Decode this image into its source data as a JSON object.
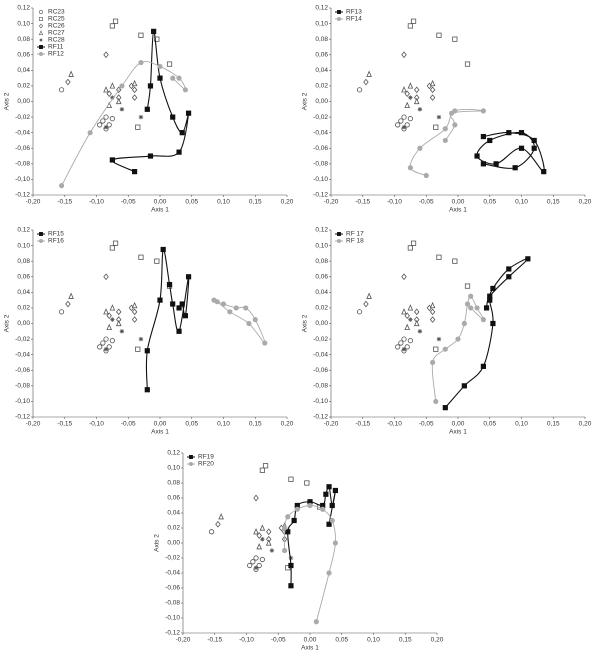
{
  "chart_data": [
    {
      "type": "scatter",
      "xlabel": "Axis 1",
      "ylabel": "Axis 2",
      "legend": "upper left",
      "xlim": [
        -0.2,
        0.2
      ],
      "ylim": [
        -0.12,
        0.12
      ],
      "xticks": [
        {
          "value": -0.2,
          "label": "-0,20"
        },
        {
          "value": -0.15,
          "label": "-0,15"
        },
        {
          "value": -0.1,
          "label": "-0,10"
        },
        {
          "value": -0.05,
          "label": "-0,05"
        },
        {
          "value": 0,
          "label": "0,00"
        },
        {
          "value": 0.05,
          "label": "0,05"
        },
        {
          "value": 0.1,
          "label": "0,10"
        },
        {
          "value": 0.15,
          "label": "0,15"
        },
        {
          "value": 0.2,
          "label": "0,20"
        }
      ],
      "yticks": [
        {
          "value": -0.12,
          "label": "-0,12"
        },
        {
          "value": -0.1,
          "label": "-0,10"
        },
        {
          "value": -0.08,
          "label": "-0,08"
        },
        {
          "value": -0.06,
          "label": "-0,06"
        },
        {
          "value": -0.04,
          "label": "-0,04"
        },
        {
          "value": -0.02,
          "label": "-0,02"
        },
        {
          "value": 0,
          "label": "0,00"
        },
        {
          "value": 0.02,
          "label": "0,02"
        },
        {
          "value": 0.04,
          "label": "0,04"
        },
        {
          "value": 0.06,
          "label": "0,06"
        },
        {
          "value": 0.08,
          "label": "0,08"
        },
        {
          "value": 0.1,
          "label": "0,10"
        },
        {
          "value": 0.12,
          "label": "0,12"
        }
      ],
      "series": [
        {
          "name": "RC23",
          "marker": "circle",
          "color": "#555555",
          "line": false,
          "x": [
            -0.155,
            -0.09,
            -0.085,
            -0.095,
            -0.08,
            -0.085,
            -0.075
          ],
          "values": [
            0.015,
            -0.025,
            -0.02,
            -0.03,
            -0.03,
            -0.035,
            -0.022
          ]
        },
        {
          "name": "RC25",
          "marker": "square",
          "color": "#555555",
          "line": false,
          "x": [
            -0.07,
            -0.075,
            -0.03,
            -0.005,
            -0.035,
            0.015
          ],
          "values": [
            0.103,
            0.097,
            0.085,
            0.08,
            -0.033,
            0.048
          ]
        },
        {
          "name": "RC26",
          "marker": "diamond",
          "color": "#555555",
          "line": false,
          "x": [
            -0.085,
            -0.145,
            -0.045,
            -0.04,
            -0.065,
            -0.08,
            -0.065,
            -0.04
          ],
          "values": [
            0.06,
            0.025,
            0.02,
            0.015,
            0.015,
            0.01,
            0.005,
            0.005
          ]
        },
        {
          "name": "RC27",
          "marker": "triangle",
          "color": "#555555",
          "line": false,
          "x": [
            -0.14,
            -0.075,
            -0.085,
            -0.065,
            -0.08,
            -0.04
          ],
          "values": [
            0.035,
            0.02,
            0.015,
            0.0,
            -0.005,
            0.023
          ]
        },
        {
          "name": "RC28",
          "marker": "star",
          "color": "#555555",
          "line": false,
          "x": [
            -0.06,
            -0.085,
            -0.03,
            -0.075
          ],
          "values": [
            -0.01,
            -0.033,
            -0.02,
            0.005
          ]
        },
        {
          "name": "RF11",
          "marker": "square",
          "color": "#111111",
          "line": true,
          "x": [
            -0.04,
            -0.075,
            -0.015,
            0.03,
            0.045,
            0.035,
            0.02,
            0.0,
            -0.01,
            -0.015,
            -0.02
          ],
          "values": [
            -0.09,
            -0.075,
            -0.07,
            -0.065,
            -0.015,
            -0.04,
            -0.02,
            0.03,
            0.09,
            0.02,
            -0.01
          ]
        },
        {
          "name": "RF12",
          "marker": "circle",
          "color": "#aaaaaa",
          "line": true,
          "x": [
            -0.155,
            -0.11,
            -0.06,
            -0.03,
            0.0,
            0.03,
            0.04,
            0.02
          ],
          "values": [
            -0.108,
            -0.04,
            0.02,
            0.05,
            0.045,
            0.03,
            0.015,
            0.03
          ]
        }
      ]
    },
    {
      "type": "scatter",
      "xlabel": "Axis 1",
      "ylabel": "Axis 2",
      "legend": "upper left",
      "xlim": [
        -0.2,
        0.2
      ],
      "ylim": [
        -0.12,
        0.12
      ],
      "xticks": [
        {
          "value": -0.2,
          "label": "-0,20"
        },
        {
          "value": -0.15,
          "label": "-0,15"
        },
        {
          "value": -0.1,
          "label": "-0,10"
        },
        {
          "value": -0.05,
          "label": "-0,05"
        },
        {
          "value": 0,
          "label": "0,00"
        },
        {
          "value": 0.05,
          "label": "0,05"
        },
        {
          "value": 0.1,
          "label": "0,10"
        },
        {
          "value": 0.15,
          "label": "0,15"
        },
        {
          "value": 0.2,
          "label": "0,20"
        }
      ],
      "yticks": [
        {
          "value": -0.12,
          "label": "-0,12"
        },
        {
          "value": -0.1,
          "label": "-0,10"
        },
        {
          "value": -0.08,
          "label": "-0,08"
        },
        {
          "value": -0.06,
          "label": "-0,06"
        },
        {
          "value": -0.04,
          "label": "-0,04"
        },
        {
          "value": -0.02,
          "label": "-0,02"
        },
        {
          "value": 0,
          "label": "0,00"
        },
        {
          "value": 0.02,
          "label": "0,02"
        },
        {
          "value": 0.04,
          "label": "0,04"
        },
        {
          "value": 0.06,
          "label": "0,06"
        },
        {
          "value": 0.08,
          "label": "0,08"
        },
        {
          "value": 0.1,
          "label": "0,10"
        },
        {
          "value": 0.12,
          "label": "0,12"
        }
      ],
      "series": [
        {
          "name": "RF13",
          "marker": "square",
          "color": "#111111",
          "line": true,
          "x": [
            0.04,
            0.08,
            0.12,
            0.135,
            0.1,
            0.06,
            0.03,
            0.05,
            0.1,
            0.12,
            0.09,
            0.04
          ],
          "values": [
            -0.045,
            -0.04,
            -0.05,
            -0.09,
            -0.06,
            -0.08,
            -0.07,
            -0.05,
            -0.04,
            -0.06,
            -0.085,
            -0.08
          ]
        },
        {
          "name": "RF14",
          "marker": "circle",
          "color": "#aaaaaa",
          "line": true,
          "x": [
            -0.05,
            -0.075,
            -0.06,
            -0.02,
            -0.005,
            0.04,
            -0.01,
            -0.005,
            -0.02
          ],
          "values": [
            -0.095,
            -0.085,
            -0.06,
            -0.035,
            -0.012,
            -0.012,
            -0.015,
            -0.03,
            -0.05
          ]
        }
      ]
    },
    {
      "type": "scatter",
      "xlabel": "Axis 1",
      "ylabel": "Axis 2",
      "legend": "upper left",
      "xlim": [
        -0.2,
        0.2
      ],
      "ylim": [
        -0.12,
        0.12
      ],
      "xticks": [
        {
          "value": -0.2,
          "label": "-0,20"
        },
        {
          "value": -0.15,
          "label": "-0,15"
        },
        {
          "value": -0.1,
          "label": "-0,10"
        },
        {
          "value": -0.05,
          "label": "-0,05"
        },
        {
          "value": 0,
          "label": "0,00"
        },
        {
          "value": 0.05,
          "label": "0,05"
        },
        {
          "value": 0.1,
          "label": "0,10"
        },
        {
          "value": 0.15,
          "label": "0,15"
        },
        {
          "value": 0.2,
          "label": "0,20"
        }
      ],
      "yticks": [
        {
          "value": -0.12,
          "label": "-0,12"
        },
        {
          "value": -0.1,
          "label": "-0,10"
        },
        {
          "value": -0.08,
          "label": "-0,08"
        },
        {
          "value": -0.06,
          "label": "-0,06"
        },
        {
          "value": -0.04,
          "label": "-0,04"
        },
        {
          "value": -0.02,
          "label": "-0,02"
        },
        {
          "value": 0,
          "label": "0,00"
        },
        {
          "value": 0.02,
          "label": "0,02"
        },
        {
          "value": 0.04,
          "label": "0,04"
        },
        {
          "value": 0.06,
          "label": "0,06"
        },
        {
          "value": 0.08,
          "label": "0,08"
        },
        {
          "value": 0.1,
          "label": "0,10"
        },
        {
          "value": 0.12,
          "label": "0,12"
        }
      ],
      "series": [
        {
          "name": "RF15",
          "marker": "square",
          "color": "#111111",
          "line": true,
          "x": [
            -0.02,
            -0.02,
            0.0,
            0.005,
            0.015,
            0.02,
            0.03,
            0.045,
            0.04,
            0.035,
            0.03
          ],
          "values": [
            -0.085,
            -0.035,
            0.03,
            0.095,
            0.05,
            0.025,
            -0.01,
            0.06,
            0.01,
            0.025,
            0.02
          ]
        },
        {
          "name": "RF16",
          "marker": "circle",
          "color": "#aaaaaa",
          "line": true,
          "x": [
            0.085,
            0.1,
            0.12,
            0.135,
            0.15,
            0.165,
            0.14,
            0.11,
            0.09
          ],
          "values": [
            0.03,
            0.025,
            0.02,
            0.02,
            0.005,
            -0.025,
            0.0,
            0.015,
            0.028
          ]
        }
      ]
    },
    {
      "type": "scatter",
      "xlabel": "Axis 1",
      "ylabel": "Axis 2",
      "legend": "upper left",
      "xlim": [
        -0.2,
        0.2
      ],
      "ylim": [
        -0.12,
        0.12
      ],
      "xticks": [
        {
          "value": -0.2,
          "label": "-0,20"
        },
        {
          "value": -0.15,
          "label": "-0,15"
        },
        {
          "value": -0.1,
          "label": "-0,10"
        },
        {
          "value": -0.05,
          "label": "-0,05"
        },
        {
          "value": 0,
          "label": "0,00"
        },
        {
          "value": 0.05,
          "label": "0,05"
        },
        {
          "value": 0.1,
          "label": "0,10"
        },
        {
          "value": 0.15,
          "label": "0,15"
        },
        {
          "value": 0.2,
          "label": "0,20"
        }
      ],
      "yticks": [
        {
          "value": -0.12,
          "label": "-0,12"
        },
        {
          "value": -0.1,
          "label": "-0,10"
        },
        {
          "value": -0.08,
          "label": "-0,08"
        },
        {
          "value": -0.06,
          "label": "-0,06"
        },
        {
          "value": -0.04,
          "label": "-0,04"
        },
        {
          "value": -0.02,
          "label": "-0,02"
        },
        {
          "value": 0,
          "label": "0,00"
        },
        {
          "value": 0.02,
          "label": "0,02"
        },
        {
          "value": 0.04,
          "label": "0,04"
        },
        {
          "value": 0.06,
          "label": "0,06"
        },
        {
          "value": 0.08,
          "label": "0,08"
        },
        {
          "value": 0.1,
          "label": "0,10"
        },
        {
          "value": 0.12,
          "label": "0,12"
        }
      ],
      "series": [
        {
          "name": "RF 17",
          "marker": "square",
          "color": "#111111",
          "line": true,
          "x": [
            -0.02,
            0.01,
            0.04,
            0.055,
            0.05,
            0.055,
            0.08,
            0.11,
            0.08,
            0.05,
            0.045
          ],
          "values": [
            -0.108,
            -0.08,
            -0.055,
            0.0,
            0.03,
            0.045,
            0.07,
            0.083,
            0.06,
            0.035,
            0.02
          ]
        },
        {
          "name": "RF 18",
          "marker": "circle",
          "color": "#aaaaaa",
          "line": true,
          "x": [
            -0.035,
            -0.04,
            -0.02,
            0.0,
            0.01,
            0.015,
            0.02,
            0.03,
            0.04,
            0.02
          ],
          "values": [
            -0.1,
            -0.05,
            -0.033,
            -0.02,
            0.0,
            0.025,
            0.035,
            0.02,
            0.005,
            0.02
          ]
        }
      ]
    },
    {
      "type": "scatter",
      "xlabel": "Axis 1",
      "ylabel": "Axis 2",
      "legend": "upper left",
      "xlim": [
        -0.2,
        0.2
      ],
      "ylim": [
        -0.12,
        0.12
      ],
      "xticks": [
        {
          "value": -0.2,
          "label": "-0,20"
        },
        {
          "value": -0.15,
          "label": "-0,15"
        },
        {
          "value": -0.1,
          "label": "-0,10"
        },
        {
          "value": -0.05,
          "label": "-0,05"
        },
        {
          "value": 0,
          "label": "0,00"
        },
        {
          "value": 0.05,
          "label": "0,05"
        },
        {
          "value": 0.1,
          "label": "0,10"
        },
        {
          "value": 0.15,
          "label": "0,15"
        },
        {
          "value": 0.2,
          "label": "0,20"
        }
      ],
      "yticks": [
        {
          "value": -0.12,
          "label": "-0,12"
        },
        {
          "value": -0.1,
          "label": "-0,10"
        },
        {
          "value": -0.08,
          "label": "-0,08"
        },
        {
          "value": -0.06,
          "label": "-0,06"
        },
        {
          "value": -0.04,
          "label": "-0,04"
        },
        {
          "value": -0.02,
          "label": "-0,02"
        },
        {
          "value": 0,
          "label": "0,00"
        },
        {
          "value": 0.02,
          "label": "0,02"
        },
        {
          "value": 0.04,
          "label": "0,04"
        },
        {
          "value": 0.06,
          "label": "0,06"
        },
        {
          "value": 0.08,
          "label": "0,08"
        },
        {
          "value": 0.1,
          "label": "0,10"
        },
        {
          "value": 0.12,
          "label": "0,12"
        }
      ],
      "series": [
        {
          "name": "RF19",
          "marker": "square",
          "color": "#111111",
          "line": true,
          "x": [
            -0.03,
            -0.03,
            -0.035,
            -0.025,
            -0.02,
            0.0,
            0.02,
            0.025,
            0.03,
            0.035,
            0.04,
            0.03
          ],
          "values": [
            -0.057,
            -0.03,
            0.015,
            0.03,
            0.05,
            0.055,
            0.05,
            0.065,
            0.075,
            0.05,
            0.07,
            0.025
          ]
        },
        {
          "name": "RF20",
          "marker": "circle",
          "color": "#aaaaaa",
          "line": true,
          "x": [
            0.01,
            0.03,
            0.04,
            0.035,
            0.02,
            0.0,
            -0.02,
            -0.035,
            -0.04,
            -0.04
          ],
          "values": [
            -0.105,
            -0.04,
            0.0,
            0.03,
            0.045,
            0.05,
            0.045,
            0.035,
            0.02,
            -0.01
          ]
        }
      ]
    }
  ]
}
